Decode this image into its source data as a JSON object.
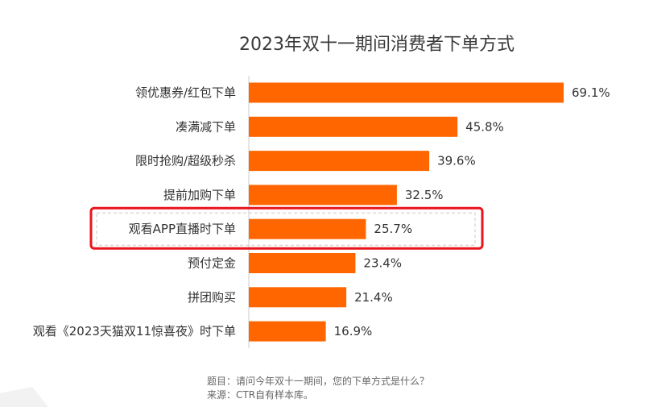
{
  "chart_data": {
    "type": "bar",
    "orientation": "horizontal",
    "title": "2023年双十一期间消费者下单方式",
    "categories": [
      "领优惠券/红包下单",
      "凑满减下单",
      "限时抢购/超级秒杀",
      "提前加购下单",
      "观看APP直播时下单",
      "预付定金",
      "拼团购买",
      "观看《2023天猫双11惊喜夜》时下单"
    ],
    "values": [
      69.1,
      45.8,
      39.6,
      32.5,
      25.7,
      23.4,
      21.4,
      16.9
    ],
    "value_labels": [
      "69.1%",
      "45.8%",
      "39.6%",
      "32.5%",
      "25.7%",
      "23.4%",
      "21.4%",
      "16.9%"
    ],
    "unit": "%",
    "xlim": [
      0,
      69.1
    ],
    "grid": false,
    "legend": "none",
    "highlighted_category": "观看APP直播时下单"
  },
  "footnotes": {
    "question": "题目：请问今年双十一期间，您的下单方式是什么？",
    "source": "来源：CTR自有样本库。"
  },
  "colors": {
    "bar": "#FF6600",
    "highlight_box": "#E8141B",
    "text": "#333333",
    "axis": "#cccccc"
  }
}
